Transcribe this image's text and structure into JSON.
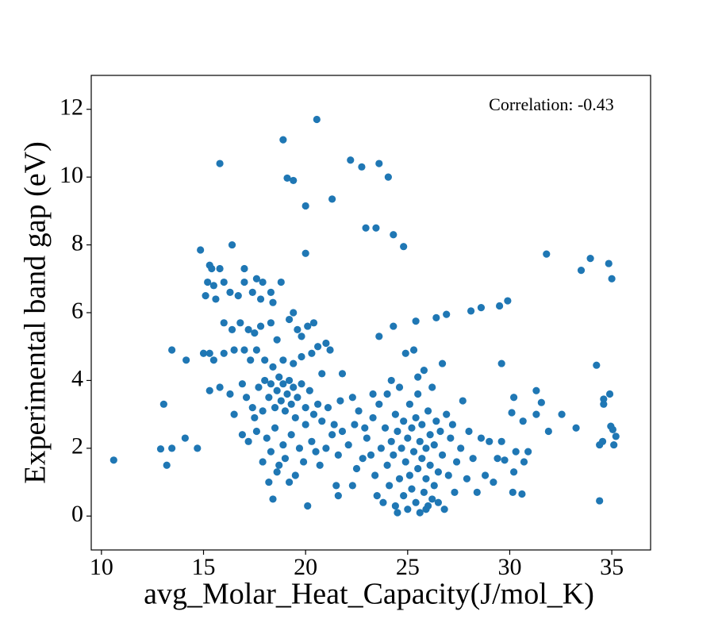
{
  "chart_data": {
    "type": "scatter",
    "annotation": "Correlation: -0.43",
    "x_label": "avg_Molar_Heat_Capacity(J/mol_K)",
    "y_label": "Experimental band gap (eV)",
    "color": "#1f77b4",
    "xlim": [
      9.5,
      36.9
    ],
    "ylim": [
      -1,
      13
    ],
    "xticks": [
      10,
      15,
      20,
      25,
      30,
      35
    ],
    "yticks": [
      0,
      2,
      4,
      6,
      8,
      10,
      12
    ],
    "x": [
      10.6,
      12.9,
      13.05,
      13.2,
      13.45,
      13.45,
      14.1,
      14.15,
      14.7,
      14.85,
      15.8,
      18.9,
      20.55,
      19.1,
      19.4,
      20.0,
      21.3,
      22.2,
      22.75,
      23.6,
      24.05,
      22.95,
      23.45,
      24.3,
      24.8,
      20.0,
      16.4,
      31.8,
      33.95,
      33.5,
      34.85,
      35.0,
      29.9,
      29.5,
      28.6,
      28.1,
      26.9,
      26.4,
      25.4,
      24.3,
      23.6,
      29.6,
      34.25,
      31.3,
      34.9,
      34.6,
      30.2,
      31.55,
      34.6,
      30.1,
      31.3,
      32.55,
      30.65,
      31.9,
      33.25,
      34.95,
      35.05,
      35.2,
      34.55,
      35.1,
      34.4,
      30.9,
      30.3,
      29.75,
      30.7,
      30.2,
      30.15,
      30.6,
      34.4,
      20.1,
      18.4,
      15.2,
      15.4,
      15.5,
      15.3,
      15.8,
      16,
      15.1,
      15.6,
      16.3,
      16.7,
      17,
      17,
      17.4,
      17.6,
      17.9,
      18.3,
      18.8,
      18.4,
      17.8,
      16,
      16.4,
      16.8,
      17.2,
      17.5,
      17.8,
      18.3,
      18.6,
      19.2,
      19.4,
      19.6,
      19.8,
      20.4,
      20.1,
      15,
      15.3,
      15.5,
      16,
      16.5,
      17,
      17.3,
      17.6,
      18,
      18.4,
      18.9,
      19.4,
      19.8,
      20.3,
      20.6,
      21,
      21.2,
      15.3,
      15.8,
      16.3,
      16.5,
      16.9,
      17.1,
      17.4,
      17.5,
      17.7,
      17.9,
      18.0,
      18.2,
      18.3,
      18.5,
      18.6,
      18.7,
      18.8,
      18.9,
      19.0,
      19.1,
      19.2,
      19.3,
      19.4,
      19.5,
      19.6,
      19.8,
      20.0,
      20.2,
      20.4,
      20.6,
      20.8,
      21.1,
      21.4,
      21.7,
      16.9,
      17.2,
      17.6,
      17.9,
      18.1,
      18.3,
      18.5,
      18.6,
      18.9,
      19.0,
      19.3,
      19.5,
      19.7,
      19.9,
      20.3,
      20.5,
      20.7,
      21.0,
      21.3,
      21.6,
      21.8,
      22.1,
      22.4,
      21.5,
      21.6,
      22.3,
      22.5,
      22.8,
      18.2,
      18.7,
      19.2,
      20,
      20.8,
      21.8,
      22.3,
      22.6,
      23.0,
      23.2,
      23.3,
      23.4,
      23.5,
      23.6,
      23.7,
      23.8,
      23.9,
      24.0,
      24.0,
      24.1,
      24.2,
      24.3,
      24.4,
      24.4,
      24.5,
      24.6,
      24.6,
      24.7,
      24.8,
      24.8,
      24.9,
      25.0,
      25.0,
      25.1,
      25.1,
      25.2,
      25.2,
      25.3,
      25.3,
      25.4,
      25.4,
      25.5,
      25.5,
      25.6,
      25.6,
      25.7,
      25.7,
      25.8,
      25.8,
      25.9,
      25.9,
      26.0,
      26.0,
      26.1,
      26.1,
      26.2,
      26.3,
      26.3,
      26.4,
      26.5,
      26.5,
      26.6,
      26.7,
      26.7,
      26.8,
      26.9,
      27.0,
      27.1,
      27.2,
      27.3,
      27.4,
      27.6,
      27.7,
      27.9,
      28.0,
      28.2,
      28.4,
      28.6,
      28.8,
      29.0,
      29.2,
      29.4,
      29.6,
      24.9,
      25.5,
      24.2,
      23.3,
      22.9,
      24.5,
      25.9,
      26.2
    ],
    "values": [
      1.65,
      1.98,
      3.3,
      1.5,
      2.0,
      4.9,
      2.3,
      4.6,
      2.0,
      7.85,
      10.4,
      11.1,
      11.7,
      9.97,
      9.9,
      9.15,
      9.35,
      10.5,
      10.3,
      10.4,
      10.0,
      8.5,
      8.5,
      8.3,
      7.95,
      7.75,
      8.0,
      7.73,
      7.6,
      7.25,
      7.45,
      7.0,
      6.35,
      6.2,
      6.15,
      6.05,
      5.95,
      5.85,
      5.75,
      5.6,
      5.3,
      4.5,
      4.45,
      3.7,
      3.6,
      3.45,
      3.5,
      3.35,
      3.3,
      3.05,
      3.0,
      3.0,
      2.8,
      2.5,
      2.6,
      2.65,
      2.55,
      2.35,
      2.2,
      2.1,
      2.1,
      1.9,
      1.9,
      1.65,
      1.6,
      1.3,
      0.7,
      0.65,
      0.45,
      0.3,
      0.5,
      6.9,
      7.3,
      6.8,
      7.4,
      7.3,
      6.9,
      6.5,
      6.4,
      6.6,
      6.5,
      6.9,
      7.3,
      6.6,
      7.0,
      6.9,
      6.6,
      6.9,
      6.3,
      6.4,
      5.7,
      5.5,
      5.7,
      5.5,
      5.4,
      5.6,
      5.7,
      5.2,
      5.8,
      6.0,
      5.5,
      5.3,
      5.7,
      5.6,
      4.8,
      4.8,
      4.6,
      4.8,
      4.9,
      4.9,
      4.6,
      4.9,
      4.6,
      4.4,
      4.6,
      4.5,
      4.7,
      4.8,
      5.0,
      5.1,
      4.9,
      3.7,
      3.8,
      3.6,
      3.0,
      3.9,
      3.5,
      3.2,
      2.9,
      3.8,
      3.1,
      4.0,
      3.5,
      3.9,
      3.2,
      3.7,
      4.1,
      3.4,
      3.9,
      3.1,
      3.6,
      4.0,
      3.3,
      3.8,
      2.9,
      3.5,
      3.9,
      3.2,
      3.7,
      3.0,
      3.3,
      2.8,
      3.2,
      2.7,
      3.4,
      2.4,
      2.2,
      2.5,
      1.6,
      2.3,
      1.9,
      2.6,
      1.3,
      2.1,
      1.7,
      2.4,
      1.2,
      2.0,
      1.6,
      2.2,
      1.9,
      1.5,
      2.0,
      2.4,
      1.8,
      2.5,
      2.1,
      2.7,
      0.9,
      0.6,
      0.9,
      1.4,
      1.7,
      1.0,
      1.5,
      1.0,
      2.7,
      4.2,
      4.2,
      3.5,
      3.1,
      2.3,
      1.8,
      2.9,
      1.2,
      0.6,
      3.3,
      2.0,
      0.4,
      2.6,
      1.5,
      3.6,
      0.9,
      2.2,
      1.8,
      3.0,
      0.3,
      2.5,
      1.1,
      3.8,
      2.0,
      0.6,
      2.8,
      1.6,
      2.3,
      0.2,
      3.3,
      1.2,
      2.6,
      0.8,
      1.9,
      4.9,
      2.9,
      0.4,
      1.4,
      3.6,
      2.2,
      0.1,
      1.7,
      2.7,
      0.7,
      4.3,
      2.0,
      1.1,
      3.1,
      0.3,
      2.4,
      1.5,
      3.8,
      0.9,
      2.1,
      2.8,
      1.3,
      0.4,
      2.5,
      1.8,
      4.5,
      0.2,
      3.0,
      1.2,
      2.3,
      2.7,
      0.7,
      1.6,
      2.0,
      3.4,
      1.1,
      2.5,
      1.7,
      0.7,
      2.3,
      1.2,
      2.2,
      1.0,
      1.7,
      2.2,
      4.8,
      4.1,
      4.0,
      3.6,
      2.6,
      0.1,
      0.2,
      0.5
    ]
  }
}
